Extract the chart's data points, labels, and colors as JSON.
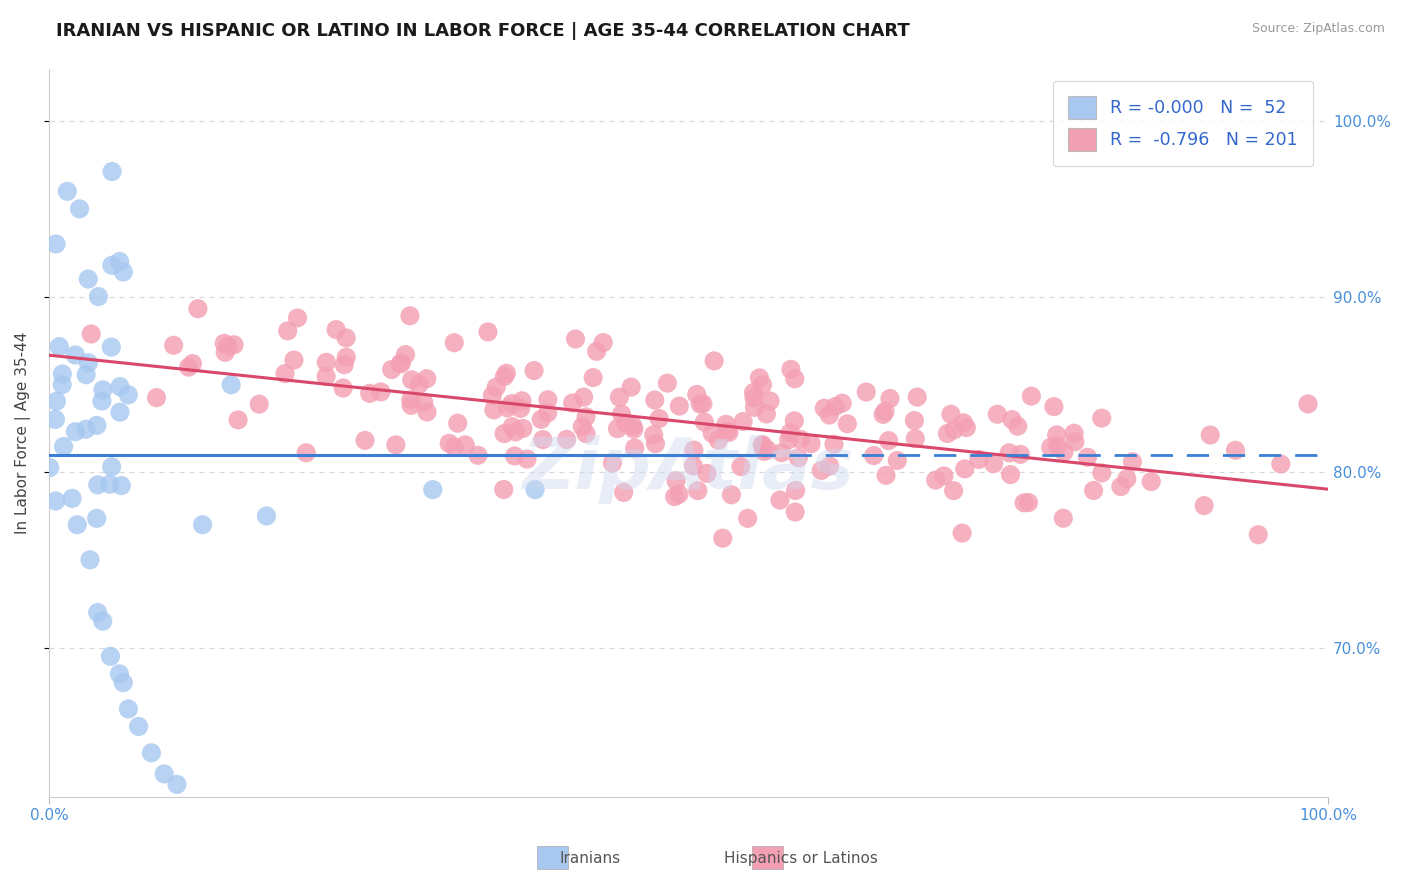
{
  "title": "IRANIAN VS HISPANIC OR LATINO IN LABOR FORCE | AGE 35-44 CORRELATION CHART",
  "source": "Source: ZipAtlas.com",
  "ylabel": "In Labor Force | Age 35-44",
  "xlim": [
    0.0,
    1.0
  ],
  "ylim": [
    0.615,
    1.03
  ],
  "yticks": [
    0.7,
    0.8,
    0.9,
    1.0
  ],
  "ytick_labels": [
    "70.0%",
    "80.0%",
    "90.0%",
    "100.0%"
  ],
  "legend_iranian_R": "-0.000",
  "legend_iranian_N": "52",
  "legend_hispanic_R": "-0.796",
  "legend_hispanic_N": "201",
  "iranian_color": "#a8c8f0",
  "hispanic_color": "#f4a0b4",
  "trend_iranian_color": "#3a7fd5",
  "trend_hispanic_color": "#d9476a",
  "watermark": "ZipAtlas",
  "background_color": "#ffffff",
  "grid_color": "#d8d8d8",
  "title_fontsize": 13,
  "tick_label_color": "#4a90d9",
  "legend_text_color": "#3366cc"
}
